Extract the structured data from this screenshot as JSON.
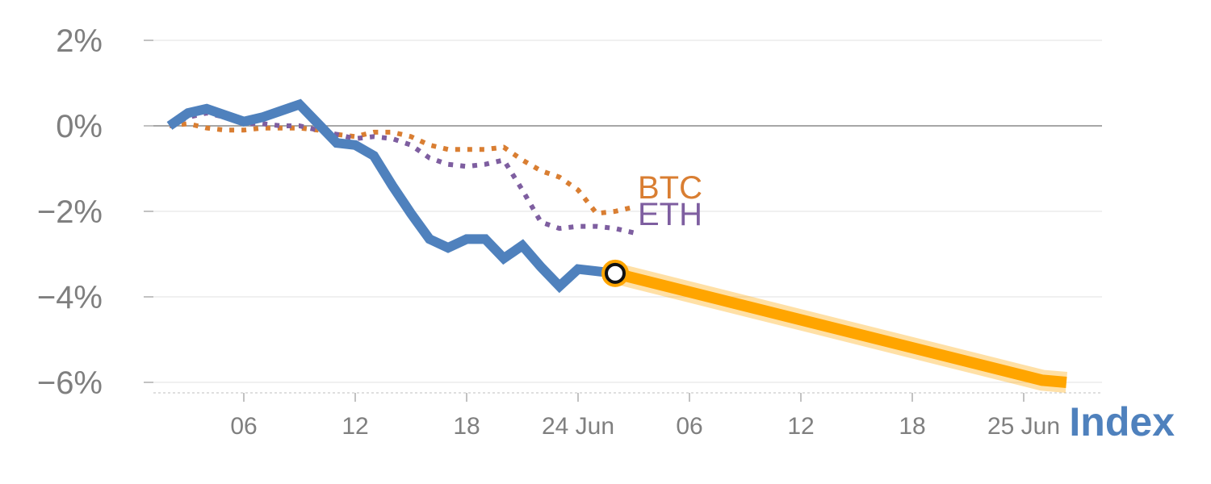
{
  "chart_data": {
    "type": "line",
    "y_unit": "%",
    "ylim": [
      -6.25,
      2.2
    ],
    "yticks": [
      2,
      0,
      -2,
      -4,
      -6
    ],
    "ytick_labels": [
      "2%",
      "0%",
      "−2%",
      "−4%",
      "−6%"
    ],
    "xtick_labels": [
      "06",
      "12",
      "18",
      "24 Jun",
      "06",
      "12",
      "18",
      "25 Jun"
    ],
    "grid": true,
    "series": [
      {
        "name": "BTC",
        "color": "#d97e32",
        "style": "dotted",
        "values": [
          0.0,
          0.05,
          -0.05,
          -0.1,
          -0.1,
          -0.05,
          -0.05,
          -0.05,
          -0.1,
          -0.2,
          -0.25,
          -0.15,
          -0.15,
          -0.25,
          -0.45,
          -0.55,
          -0.55,
          -0.55,
          -0.5,
          -0.8,
          -1.05,
          -1.2,
          -1.5,
          -2.05,
          -2.0,
          -1.9
        ]
      },
      {
        "name": "ETH",
        "color": "#7e5ea0",
        "style": "dotted",
        "values": [
          0.0,
          0.2,
          0.3,
          0.2,
          0.05,
          0.05,
          0.0,
          0.0,
          -0.1,
          -0.2,
          -0.3,
          -0.25,
          -0.3,
          -0.45,
          -0.75,
          -0.9,
          -0.95,
          -0.9,
          -0.8,
          -1.5,
          -2.25,
          -2.4,
          -2.35,
          -2.35,
          -2.4,
          -2.5
        ]
      },
      {
        "name": "",
        "color": "#4f81bd",
        "style": "solid",
        "values": [
          0.0,
          0.3,
          0.4,
          0.25,
          0.1,
          0.2,
          0.35,
          0.5,
          0.05,
          -0.4,
          -0.45,
          -0.7,
          -1.4,
          -2.05,
          -2.65,
          -2.85,
          -2.65,
          -2.65,
          -3.1,
          -2.8,
          -3.3,
          -3.75,
          -3.35,
          -3.4,
          -3.45
        ]
      },
      {
        "name": "",
        "color": "#ffa500",
        "style": "forecast",
        "x": [
          24,
          47,
          48.3
        ],
        "values": [
          -3.45,
          -5.95,
          -6.0
        ]
      }
    ],
    "marker": {
      "x": 24,
      "value": -3.45,
      "color": "#ffa500"
    },
    "brand_label": "Index",
    "brand_color": "#4f81bd"
  }
}
